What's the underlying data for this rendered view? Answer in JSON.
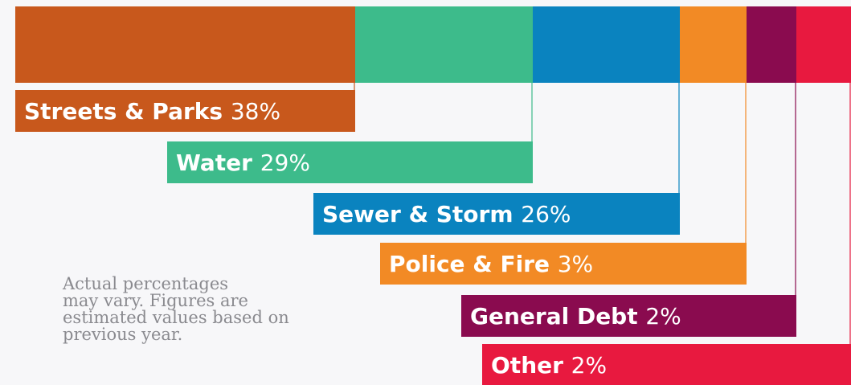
{
  "chart_data": {
    "type": "bar",
    "orientation": "stacked-horizontal-with-callouts",
    "unit": "%",
    "segments": [
      {
        "name": "Streets & Parks",
        "value": 38,
        "value_label": "38%",
        "color": "#c8581c"
      },
      {
        "name": "Water",
        "value": 29,
        "value_label": "29%",
        "color": "#3dbb8b"
      },
      {
        "name": "Sewer & Storm",
        "value": 26,
        "value_label": "26%",
        "color": "#0a83bf"
      },
      {
        "name": "Police & Fire",
        "value": 3,
        "value_label": "3%",
        "color": "#f28a25"
      },
      {
        "name": "General Debt",
        "value": 2,
        "value_label": "2%",
        "color": "#8a0b4f"
      },
      {
        "name": "Other",
        "value": 2,
        "value_label": "2%",
        "color": "#e8193f"
      }
    ]
  },
  "footnote": "Actual percentages\nmay vary. Figures are\nestimated values based on\nprevious year."
}
